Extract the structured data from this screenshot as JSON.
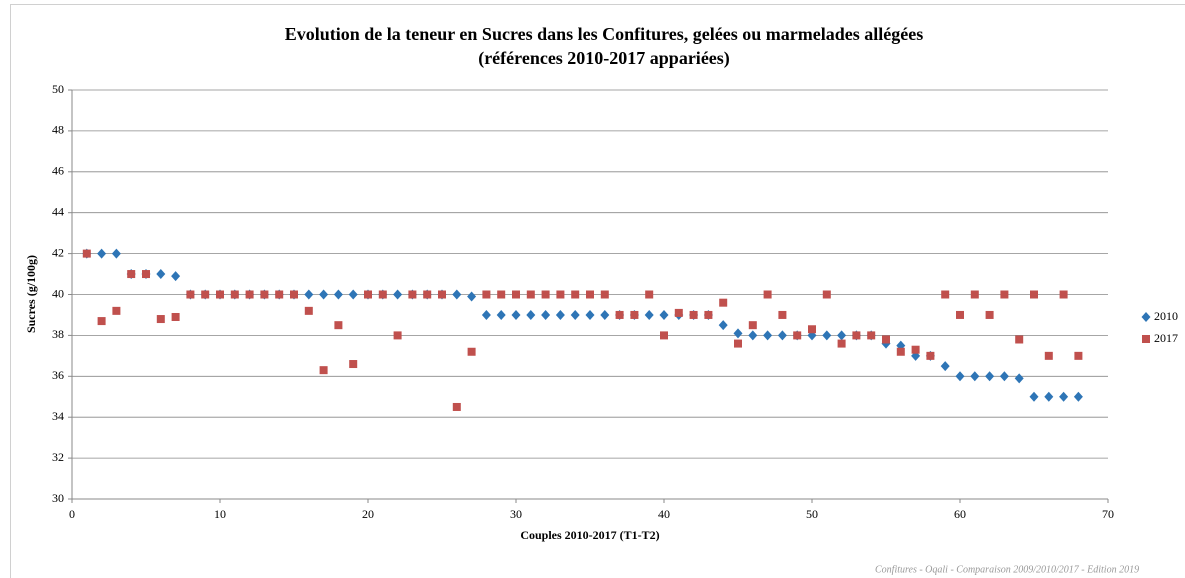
{
  "chart_data": {
    "type": "scatter",
    "title": [
      "Evolution de la teneur en Sucres dans les Confitures, gelées ou marmelades allégées",
      "(références 2010-2017 appariées)"
    ],
    "x_label": "Couples 2010-2017  (T1-T2)",
    "y_label": "Sucres (g/100g)",
    "footnote": "Confitures - Oqali - Comparaison 2009/2010/2017 - Edition 2019",
    "x": [
      1,
      2,
      3,
      4,
      5,
      6,
      7,
      8,
      9,
      10,
      11,
      12,
      13,
      14,
      15,
      16,
      17,
      18,
      19,
      20,
      21,
      22,
      23,
      24,
      25,
      26,
      27,
      28,
      29,
      30,
      31,
      32,
      33,
      34,
      35,
      36,
      37,
      38,
      39,
      40,
      41,
      42,
      43,
      44,
      45,
      46,
      47,
      48,
      49,
      50,
      51,
      52,
      53,
      54,
      55,
      56,
      57,
      58,
      59,
      60,
      61,
      62,
      63,
      64,
      65,
      66,
      67,
      68
    ],
    "series": [
      {
        "name": "2010",
        "color": "#2e75b6",
        "marker": "diamond",
        "values": [
          42,
          42,
          42,
          41,
          41,
          41,
          40.9,
          40,
          40,
          40,
          40,
          40,
          40,
          40,
          40,
          40,
          40,
          40,
          40,
          40,
          40,
          40,
          40,
          40,
          40,
          40,
          39.9,
          39,
          39,
          39,
          39,
          39,
          39,
          39,
          39,
          39,
          39,
          39,
          39,
          39,
          39,
          39,
          39,
          38.5,
          38.1,
          38,
          38,
          38,
          38,
          38,
          38,
          38,
          38,
          38,
          37.6,
          37.5,
          37,
          37,
          36.5,
          36,
          36,
          36,
          36,
          35.9,
          35,
          35,
          35,
          35
        ]
      },
      {
        "name": "2017",
        "color": "#c0504d",
        "marker": "square",
        "values": [
          42,
          38.7,
          39.2,
          41,
          41,
          38.8,
          38.9,
          40,
          40,
          40,
          40,
          40,
          40,
          40,
          40,
          39.2,
          36.3,
          38.5,
          36.6,
          40,
          40,
          38,
          40,
          40,
          40,
          34.5,
          37.2,
          40,
          40,
          40,
          40,
          40,
          40,
          40,
          40,
          40,
          39,
          39,
          40,
          38,
          39.1,
          39,
          39,
          39.6,
          37.6,
          38.5,
          40,
          39,
          38,
          38.3,
          40,
          37.6,
          38,
          38,
          37.8,
          37.2,
          37.3,
          37,
          40,
          39,
          40,
          39,
          40,
          37.8,
          40,
          37,
          40,
          37
        ]
      }
    ],
    "xlim": [
      0,
      70
    ],
    "xticks": [
      0,
      10,
      20,
      30,
      40,
      50,
      60,
      70
    ],
    "ylim": [
      30,
      50
    ],
    "yticks": [
      30,
      32,
      34,
      36,
      38,
      40,
      42,
      44,
      46,
      48,
      50
    ],
    "grid": true,
    "legend": "right"
  }
}
